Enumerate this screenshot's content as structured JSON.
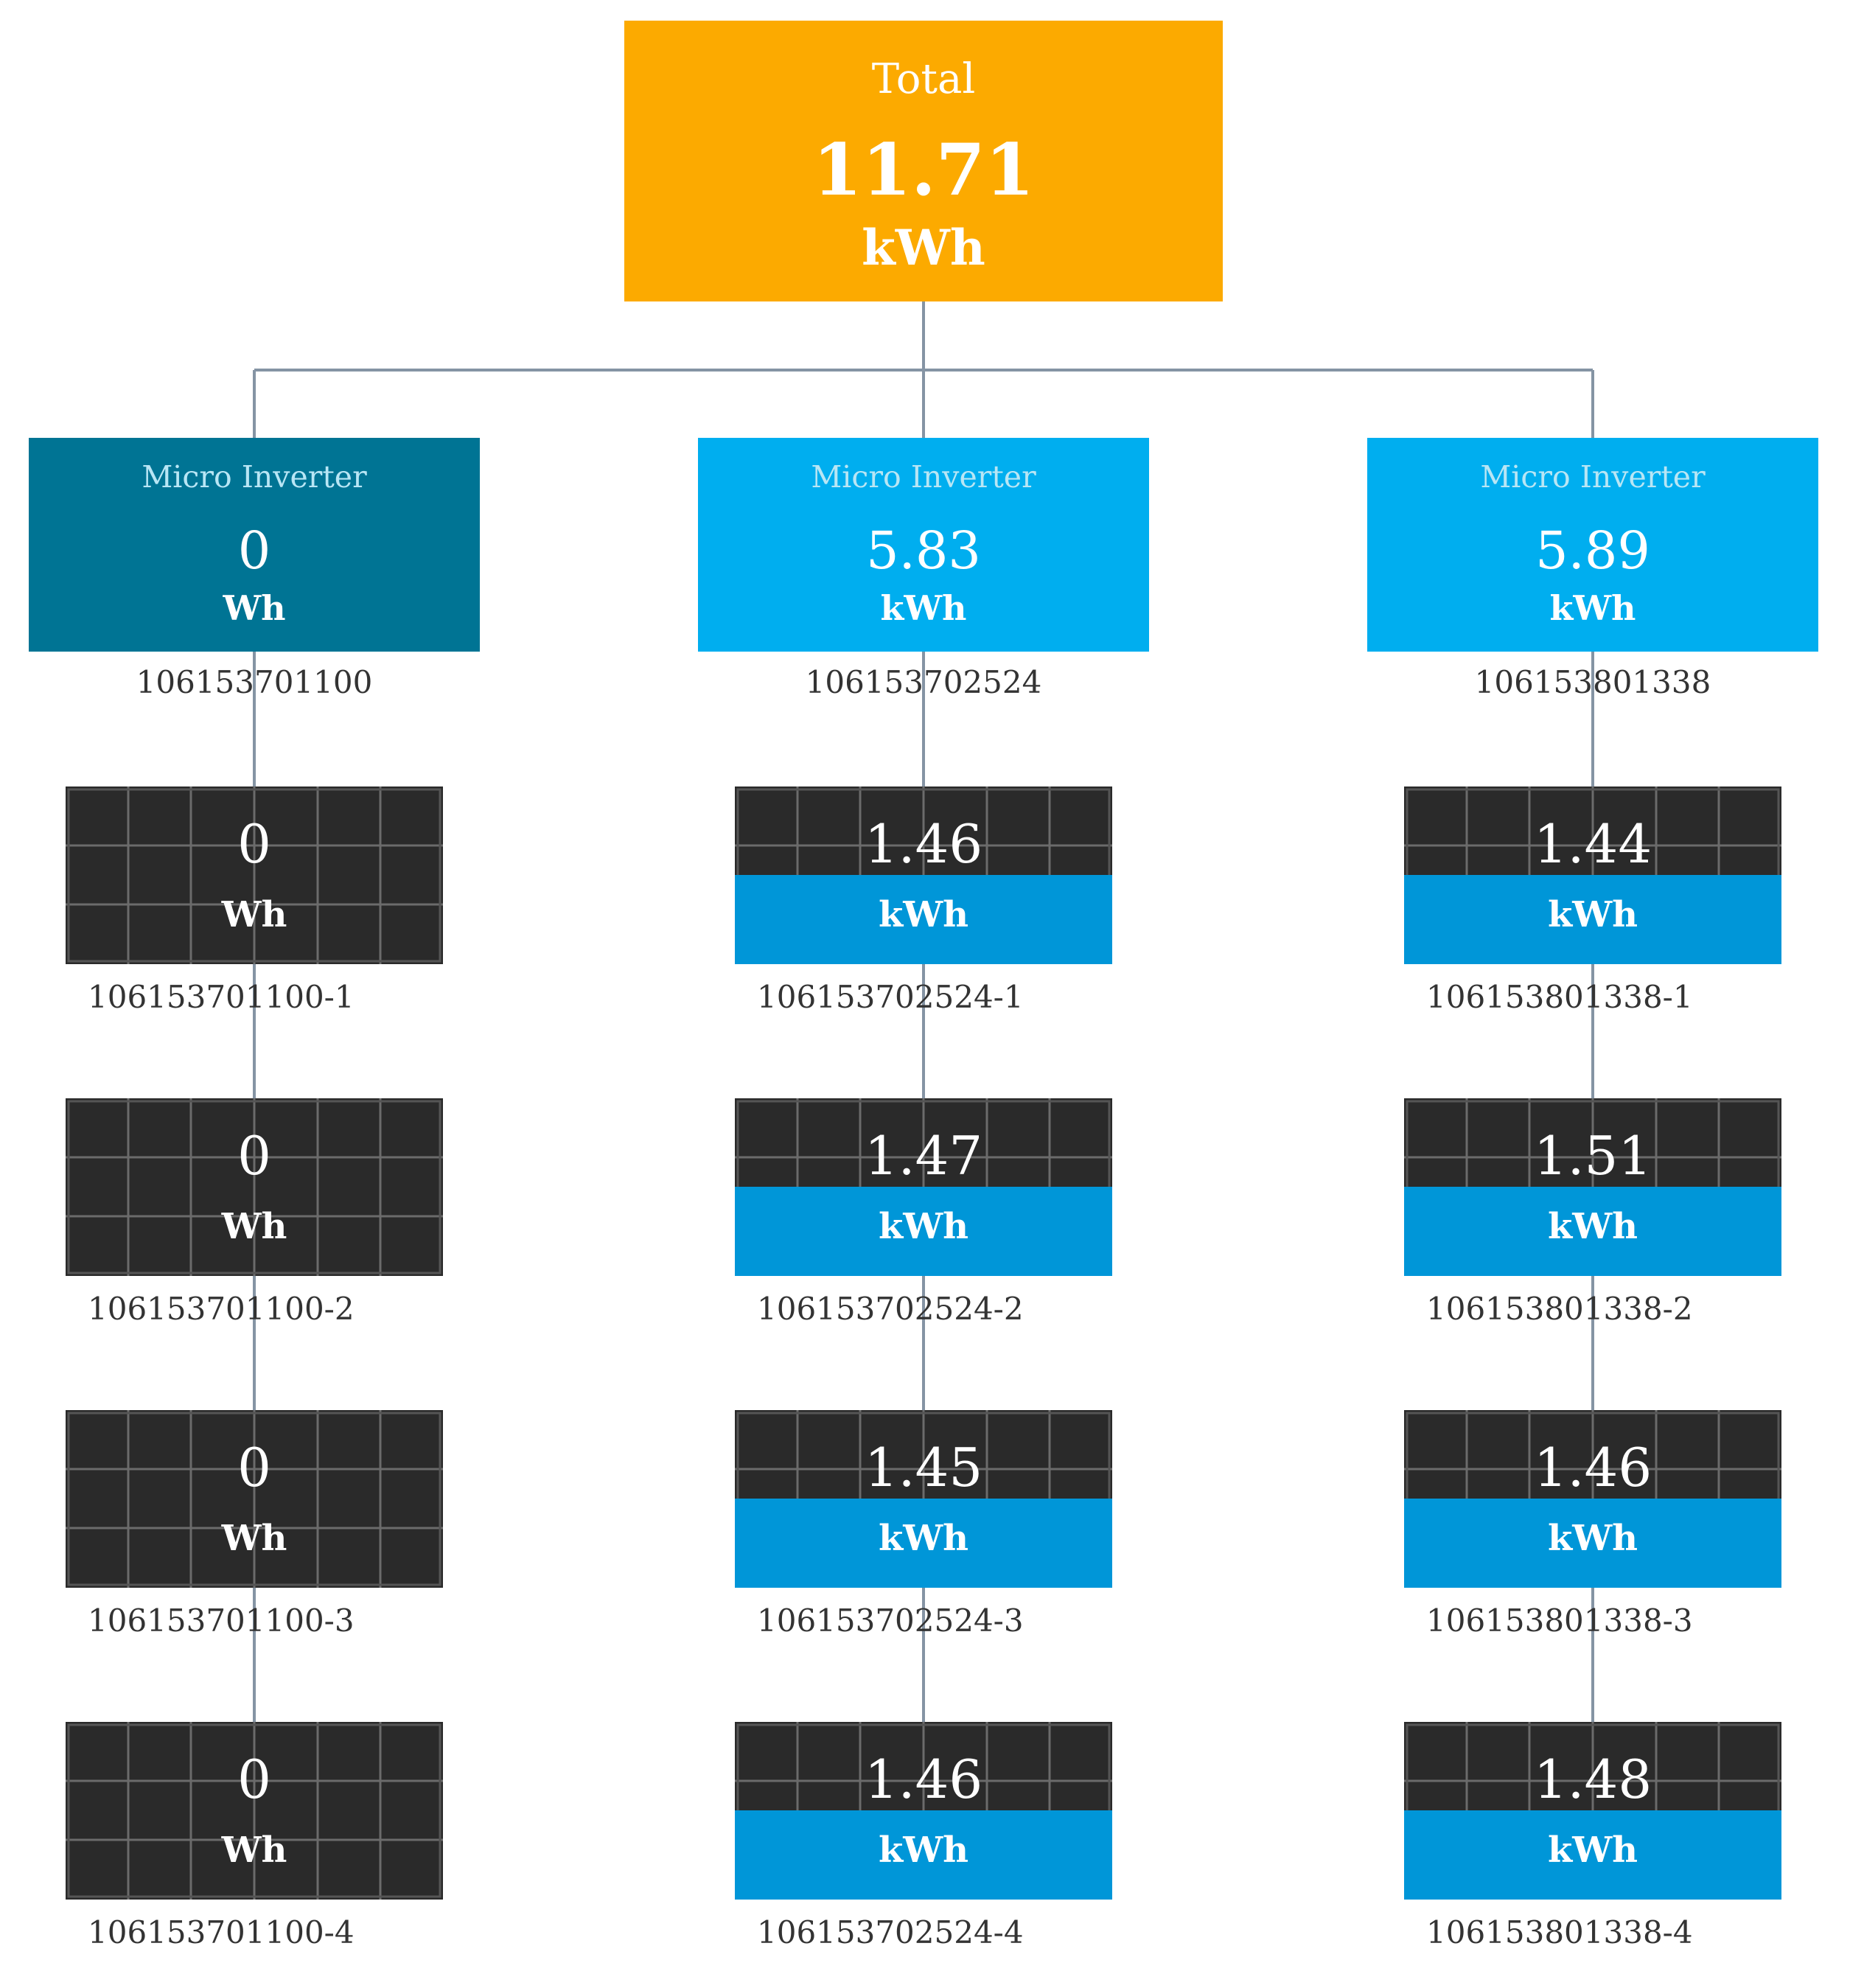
{
  "total": {
    "title": "Total",
    "value": "11.71",
    "unit": "kWh"
  },
  "colors": {
    "total": "#fcaa00",
    "inverter_offline": "#007494",
    "inverter_online": "#00aeef",
    "panel_dark": "#2a2a2a",
    "panel_band": "#0096d8",
    "connector": "#8594a4"
  },
  "inverters": [
    {
      "title": "Micro Inverter",
      "value": "0",
      "unit": "Wh",
      "serial": "106153701100",
      "status": "offline",
      "panels": [
        {
          "value": "0",
          "unit": "Wh",
          "serial": "106153701100-1",
          "fill": 0
        },
        {
          "value": "0",
          "unit": "Wh",
          "serial": "106153701100-2",
          "fill": 0
        },
        {
          "value": "0",
          "unit": "Wh",
          "serial": "106153701100-3",
          "fill": 0
        },
        {
          "value": "0",
          "unit": "Wh",
          "serial": "106153701100-4",
          "fill": 0
        }
      ]
    },
    {
      "title": "Micro Inverter",
      "value": "5.83",
      "unit": "kWh",
      "serial": "106153702524",
      "status": "online",
      "panels": [
        {
          "value": "1.46",
          "unit": "kWh",
          "serial": "106153702524-1",
          "fill": 0.5
        },
        {
          "value": "1.47",
          "unit": "kWh",
          "serial": "106153702524-2",
          "fill": 0.5
        },
        {
          "value": "1.45",
          "unit": "kWh",
          "serial": "106153702524-3",
          "fill": 0.5
        },
        {
          "value": "1.46",
          "unit": "kWh",
          "serial": "106153702524-4",
          "fill": 0.5
        }
      ]
    },
    {
      "title": "Micro Inverter",
      "value": "5.89",
      "unit": "kWh",
      "serial": "106153801338",
      "status": "online",
      "panels": [
        {
          "value": "1.44",
          "unit": "kWh",
          "serial": "106153801338-1",
          "fill": 0.5
        },
        {
          "value": "1.51",
          "unit": "kWh",
          "serial": "106153801338-2",
          "fill": 0.5
        },
        {
          "value": "1.46",
          "unit": "kWh",
          "serial": "106153801338-3",
          "fill": 0.5
        },
        {
          "value": "1.48",
          "unit": "kWh",
          "serial": "106153801338-4",
          "fill": 0.5
        }
      ]
    }
  ]
}
